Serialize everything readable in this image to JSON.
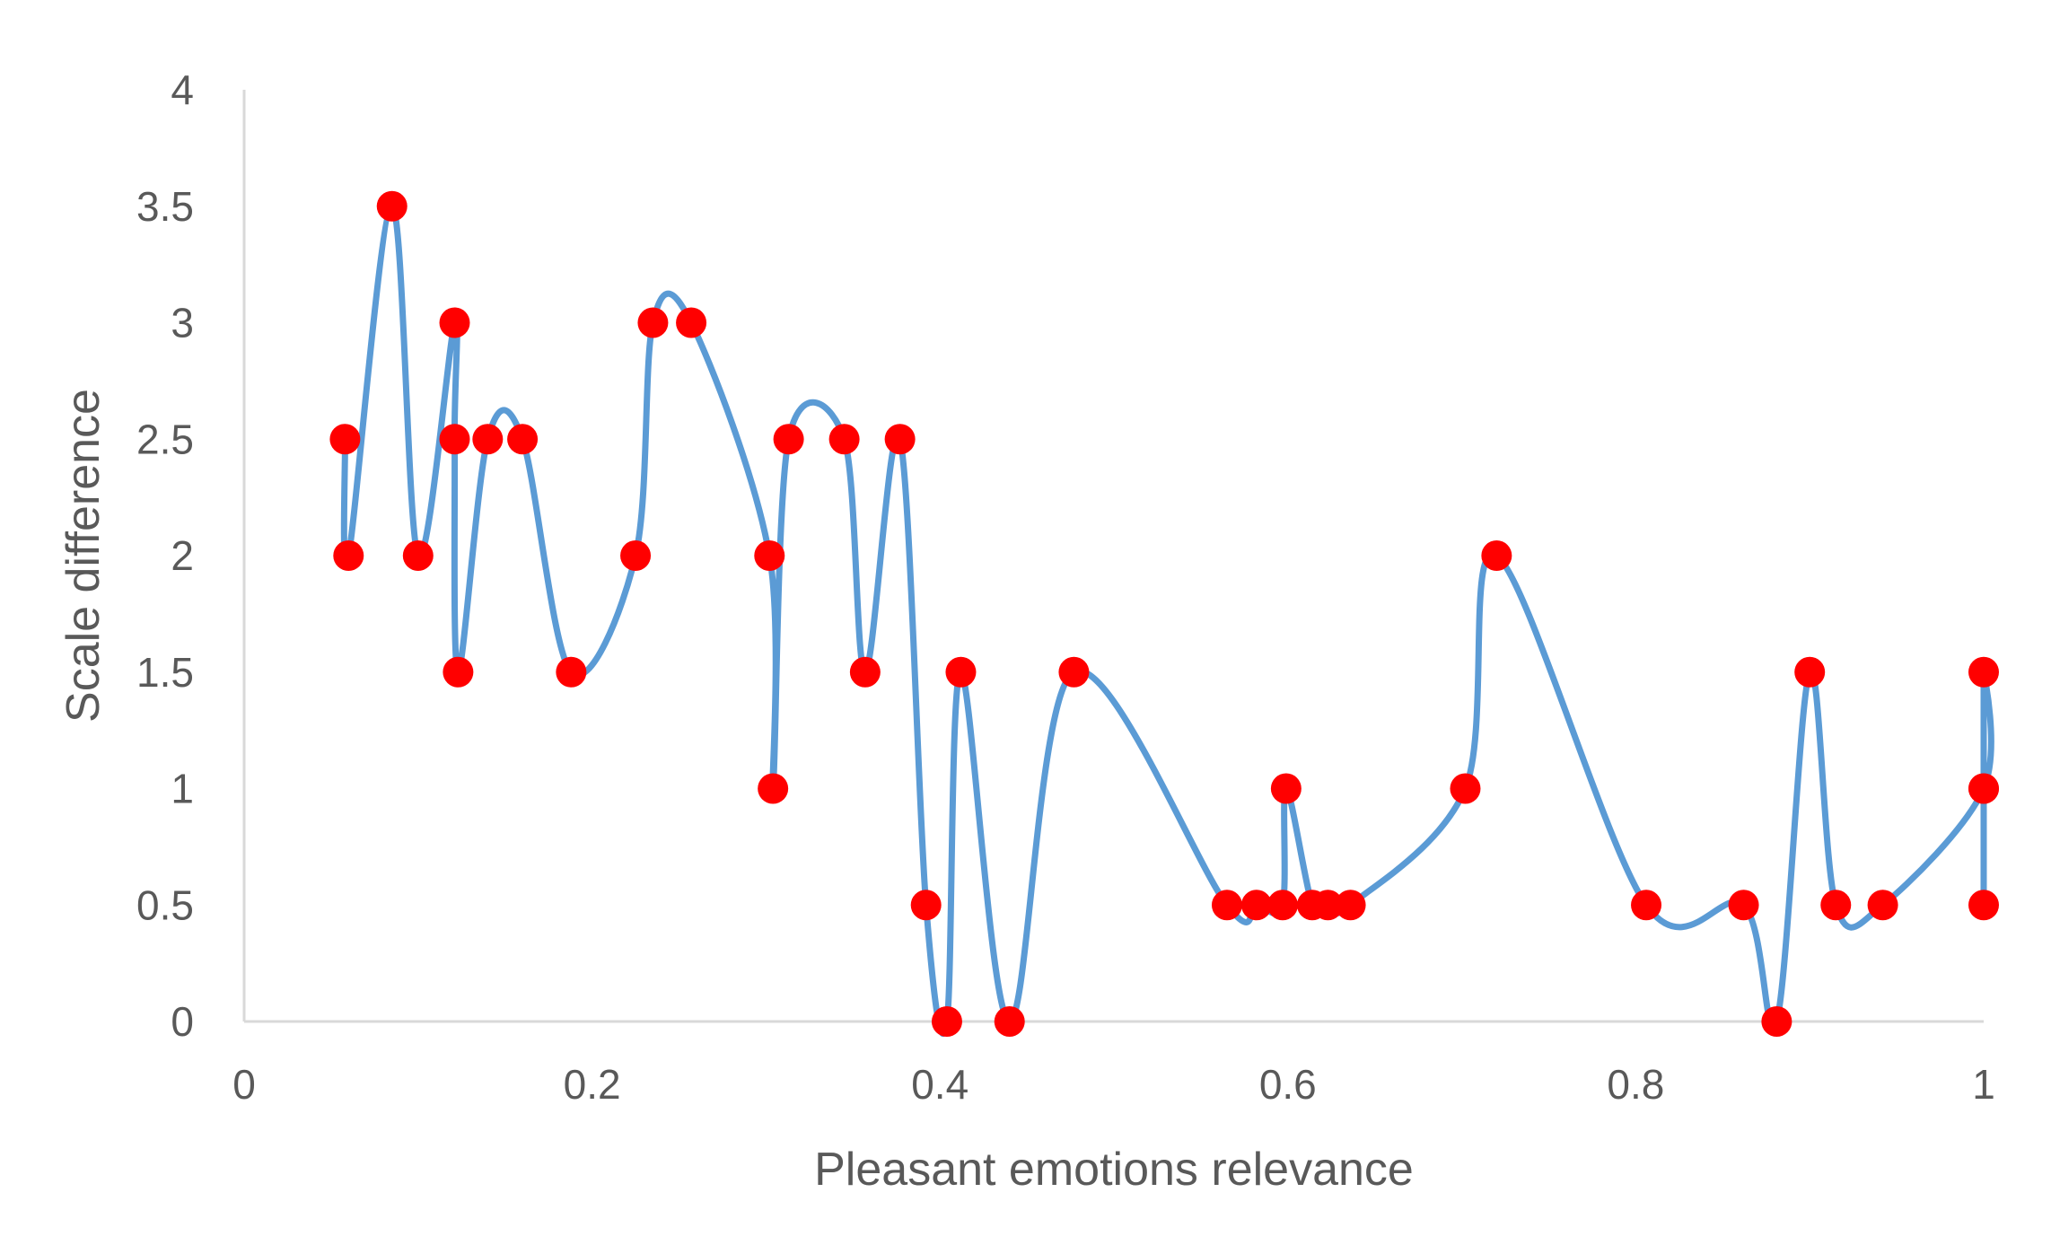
{
  "chart_data": {
    "type": "scatter",
    "title": "",
    "xlabel": "Pleasant emotions relevance",
    "ylabel": "Scale difference",
    "xlim": [
      0,
      1
    ],
    "ylim": [
      0,
      4
    ],
    "x_ticks": [
      "0",
      "0.2",
      "0.4",
      "0.6",
      "0.8",
      "1"
    ],
    "y_ticks": [
      "0",
      "0.5",
      "1",
      "1.5",
      "2",
      "2.5",
      "3",
      "3.5",
      "4"
    ],
    "grid": false,
    "legend": "none",
    "smoothed_line": true,
    "line_color": "#5b9bd5",
    "marker_color": "#ff0000",
    "series": [
      {
        "points": [
          [
            0.058,
            2.5
          ],
          [
            0.06,
            2.0
          ],
          [
            0.085,
            3.5
          ],
          [
            0.1,
            2.0
          ],
          [
            0.121,
            3.0
          ],
          [
            0.121,
            2.5
          ],
          [
            0.123,
            1.5
          ],
          [
            0.14,
            2.5
          ],
          [
            0.16,
            2.5
          ],
          [
            0.188,
            1.5
          ],
          [
            0.225,
            2.0
          ],
          [
            0.235,
            3.0
          ],
          [
            0.257,
            3.0
          ],
          [
            0.302,
            2.0
          ],
          [
            0.304,
            1.0
          ],
          [
            0.313,
            2.5
          ],
          [
            0.345,
            2.5
          ],
          [
            0.357,
            1.5
          ],
          [
            0.377,
            2.5
          ],
          [
            0.392,
            0.5
          ],
          [
            0.404,
            0.0
          ],
          [
            0.412,
            1.5
          ],
          [
            0.44,
            0.0
          ],
          [
            0.477,
            1.5
          ],
          [
            0.565,
            0.5
          ],
          [
            0.582,
            0.5
          ],
          [
            0.597,
            0.5
          ],
          [
            0.599,
            1.0
          ],
          [
            0.614,
            0.5
          ],
          [
            0.623,
            0.5
          ],
          [
            0.636,
            0.5
          ],
          [
            0.702,
            1.0
          ],
          [
            0.72,
            2.0
          ],
          [
            0.806,
            0.5
          ],
          [
            0.862,
            0.5
          ],
          [
            0.881,
            0.0
          ],
          [
            0.9,
            1.5
          ],
          [
            0.915,
            0.5
          ],
          [
            0.942,
            0.5
          ],
          [
            1.0,
            1.0
          ],
          [
            1.0,
            1.5
          ],
          [
            1.0,
            1.0
          ],
          [
            1.0,
            0.5
          ]
        ]
      }
    ]
  }
}
